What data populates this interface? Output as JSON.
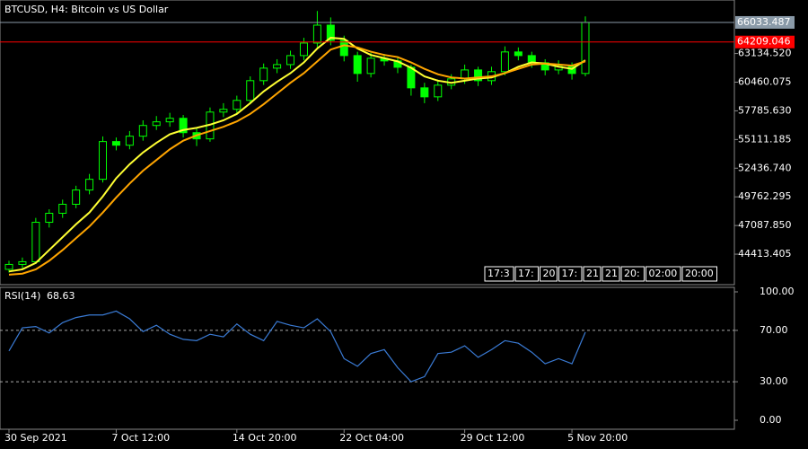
{
  "chart_data": [
    {
      "type": "candlestick",
      "title": "BTCUSD, H4:  Bitcoin vs US Dollar",
      "categories": [
        "30 Sep 2021",
        null,
        null,
        null,
        null,
        null,
        null,
        null,
        "7 Oct 12:00",
        null,
        null,
        null,
        null,
        null,
        null,
        null,
        null,
        "14 Oct 20:00",
        null,
        null,
        null,
        null,
        null,
        null,
        null,
        "22 Oct 04:00",
        null,
        null,
        null,
        null,
        null,
        null,
        null,
        null,
        "29 Oct 12:00",
        null,
        null,
        null,
        null,
        null,
        null,
        null,
        "5 Nov 20:00",
        null
      ],
      "candles": [
        [
          43000,
          43800,
          42700,
          43460
        ],
        [
          43460,
          44100,
          43100,
          43710
        ],
        [
          43710,
          47800,
          43500,
          47390
        ],
        [
          47390,
          48600,
          46900,
          48230
        ],
        [
          48230,
          49500,
          47800,
          49070
        ],
        [
          49070,
          50800,
          48700,
          50400
        ],
        [
          50400,
          51900,
          50000,
          51400
        ],
        [
          51400,
          55400,
          51100,
          54920
        ],
        [
          54920,
          55300,
          54100,
          54580
        ],
        [
          54580,
          55900,
          54200,
          55420
        ],
        [
          55420,
          56900,
          55000,
          56420
        ],
        [
          56420,
          57300,
          56000,
          56760
        ],
        [
          56760,
          57600,
          56300,
          57090
        ],
        [
          57090,
          57400,
          55300,
          55750
        ],
        [
          55750,
          56200,
          54500,
          55170
        ],
        [
          55170,
          58100,
          54900,
          57670
        ],
        [
          57670,
          58500,
          57200,
          57930
        ],
        [
          57930,
          59200,
          57500,
          58760
        ],
        [
          58760,
          61000,
          58400,
          60600
        ],
        [
          60600,
          62200,
          60200,
          61770
        ],
        [
          61770,
          62600,
          61300,
          62100
        ],
        [
          62100,
          63400,
          61700,
          62940
        ],
        [
          62940,
          64600,
          62500,
          64110
        ],
        [
          64110,
          67100,
          63700,
          65780
        ],
        [
          65780,
          66500,
          63900,
          64360
        ],
        [
          64360,
          64800,
          62400,
          62940
        ],
        [
          62940,
          63300,
          60500,
          61270
        ],
        [
          61270,
          63200,
          60900,
          62690
        ],
        [
          62690,
          63100,
          62000,
          62440
        ],
        [
          62440,
          62800,
          61300,
          61850
        ],
        [
          61850,
          62100,
          59200,
          59930
        ],
        [
          59930,
          60400,
          58500,
          59090
        ],
        [
          59090,
          60700,
          58700,
          60180
        ],
        [
          60180,
          61200,
          59800,
          60770
        ],
        [
          60770,
          62100,
          60300,
          61600
        ],
        [
          61600,
          61900,
          60100,
          60600
        ],
        [
          60600,
          61900,
          60200,
          61440
        ],
        [
          61440,
          63800,
          61100,
          63280
        ],
        [
          63280,
          63700,
          62500,
          62940
        ],
        [
          62940,
          63300,
          61800,
          62270
        ],
        [
          62270,
          62600,
          61100,
          61600
        ],
        [
          61600,
          62500,
          61200,
          61940
        ],
        [
          61940,
          62300,
          60700,
          61270
        ],
        [
          61270,
          66600,
          61000,
          66033.487
        ]
      ],
      "candle_color": "#00ff00",
      "ma_lines": [
        {
          "color": "#ffff33",
          "values": [
            42800,
            43000,
            43600,
            44800,
            46000,
            47200,
            48300,
            49800,
            51500,
            52800,
            53900,
            54800,
            55600,
            56000,
            56200,
            56500,
            56900,
            57500,
            58500,
            59600,
            60500,
            61300,
            62300,
            63600,
            64600,
            64500,
            63600,
            63000,
            62700,
            62400,
            61800,
            61000,
            60600,
            60400,
            60600,
            60800,
            60900,
            61300,
            61900,
            62300,
            62200,
            61900,
            61700,
            62500
          ]
        },
        {
          "color": "#ffa500",
          "values": [
            42500,
            42600,
            43000,
            43800,
            44800,
            45900,
            47000,
            48300,
            49700,
            51000,
            52200,
            53200,
            54200,
            55000,
            55500,
            55900,
            56300,
            56800,
            57500,
            58400,
            59400,
            60400,
            61300,
            62400,
            63500,
            63900,
            63700,
            63300,
            63000,
            62800,
            62300,
            61700,
            61200,
            60900,
            60800,
            60900,
            61000,
            61300,
            61700,
            62100,
            62200,
            62100,
            62000,
            62400
          ]
        }
      ],
      "bid": 66033.487,
      "bid_color": "#8a9aa8",
      "level": 64209.046,
      "level_color": "#ff0000",
      "ylim": [
        41570,
        68125
      ],
      "yticks": [
        {
          "value": 63134.52,
          "label": "63134.520"
        },
        60460.075,
        {
          "value": 57785.63,
          "label": "57785.630"
        },
        55111.185,
        {
          "value": 52436.74,
          "label": "52436.740"
        },
        49762.295,
        {
          "value": 47087.85,
          "label": "47087.850"
        },
        44413.405
      ],
      "time_boxes": [
        "17:3",
        "17:",
        "20",
        "17:",
        "21",
        "21",
        "20:",
        "02:00",
        "20:00"
      ]
    },
    {
      "type": "line",
      "title": "RSI(14)",
      "color": "#3a7bd5",
      "values": [
        54,
        72,
        73,
        68,
        76,
        80,
        82,
        82,
        85,
        79,
        69,
        74,
        67,
        63,
        62,
        67,
        65,
        75,
        67,
        62,
        77,
        74,
        72,
        79,
        69,
        48,
        42,
        52,
        55,
        41,
        30,
        34,
        52,
        53,
        58,
        49,
        55,
        62,
        60,
        53,
        44,
        48,
        44,
        68.63
      ],
      "ylim": [
        -7,
        103.5
      ],
      "yticks": [
        {
          "value": 100,
          "label": "100.00"
        },
        {
          "value": 70,
          "label": "70.00"
        },
        {
          "value": 30,
          "label": "30.00"
        },
        {
          "value": 0,
          "label": "0.00"
        }
      ],
      "level_lines": [
        70,
        30
      ]
    }
  ]
}
